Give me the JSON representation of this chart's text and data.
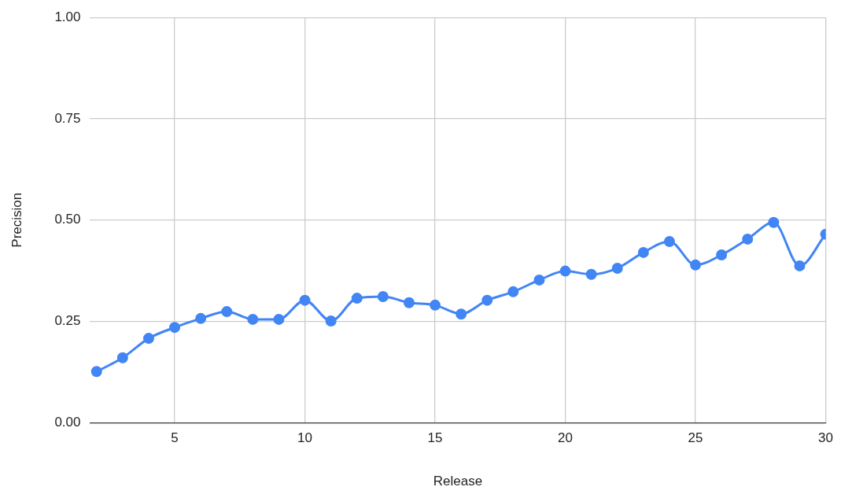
{
  "chart_data": {
    "type": "line",
    "xlabel": "Release",
    "ylabel": "Precision",
    "x": [
      2,
      3,
      4,
      5,
      6,
      7,
      8,
      9,
      10,
      11,
      12,
      13,
      14,
      15,
      16,
      17,
      18,
      19,
      20,
      21,
      22,
      23,
      24,
      25,
      26,
      27,
      28,
      29,
      30
    ],
    "series": [
      {
        "color": "#4285f4",
        "values": [
          0.126,
          0.16,
          0.208,
          0.235,
          0.257,
          0.274,
          0.255,
          0.255,
          0.302,
          0.251,
          0.307,
          0.311,
          0.296,
          0.29,
          0.268,
          0.302,
          0.323,
          0.352,
          0.374,
          0.366,
          0.381,
          0.42,
          0.447,
          0.389,
          0.414,
          0.453,
          0.494,
          0.387,
          0.465
        ]
      }
    ],
    "xlim": [
      1.75,
      30
    ],
    "xticks": [
      5,
      10,
      15,
      20,
      25,
      30
    ],
    "ylim": [
      0,
      1
    ],
    "yticks": [
      {
        "value": 0,
        "label": "0.00"
      },
      {
        "value": 0.25,
        "label": "0.25"
      },
      {
        "value": 0.5,
        "label": "0.50"
      },
      {
        "value": 0.75,
        "label": "0.75"
      },
      {
        "value": 1,
        "label": "1.00"
      }
    ],
    "grid": true,
    "legend": false,
    "marker": "circle",
    "line_style": "solid"
  }
}
